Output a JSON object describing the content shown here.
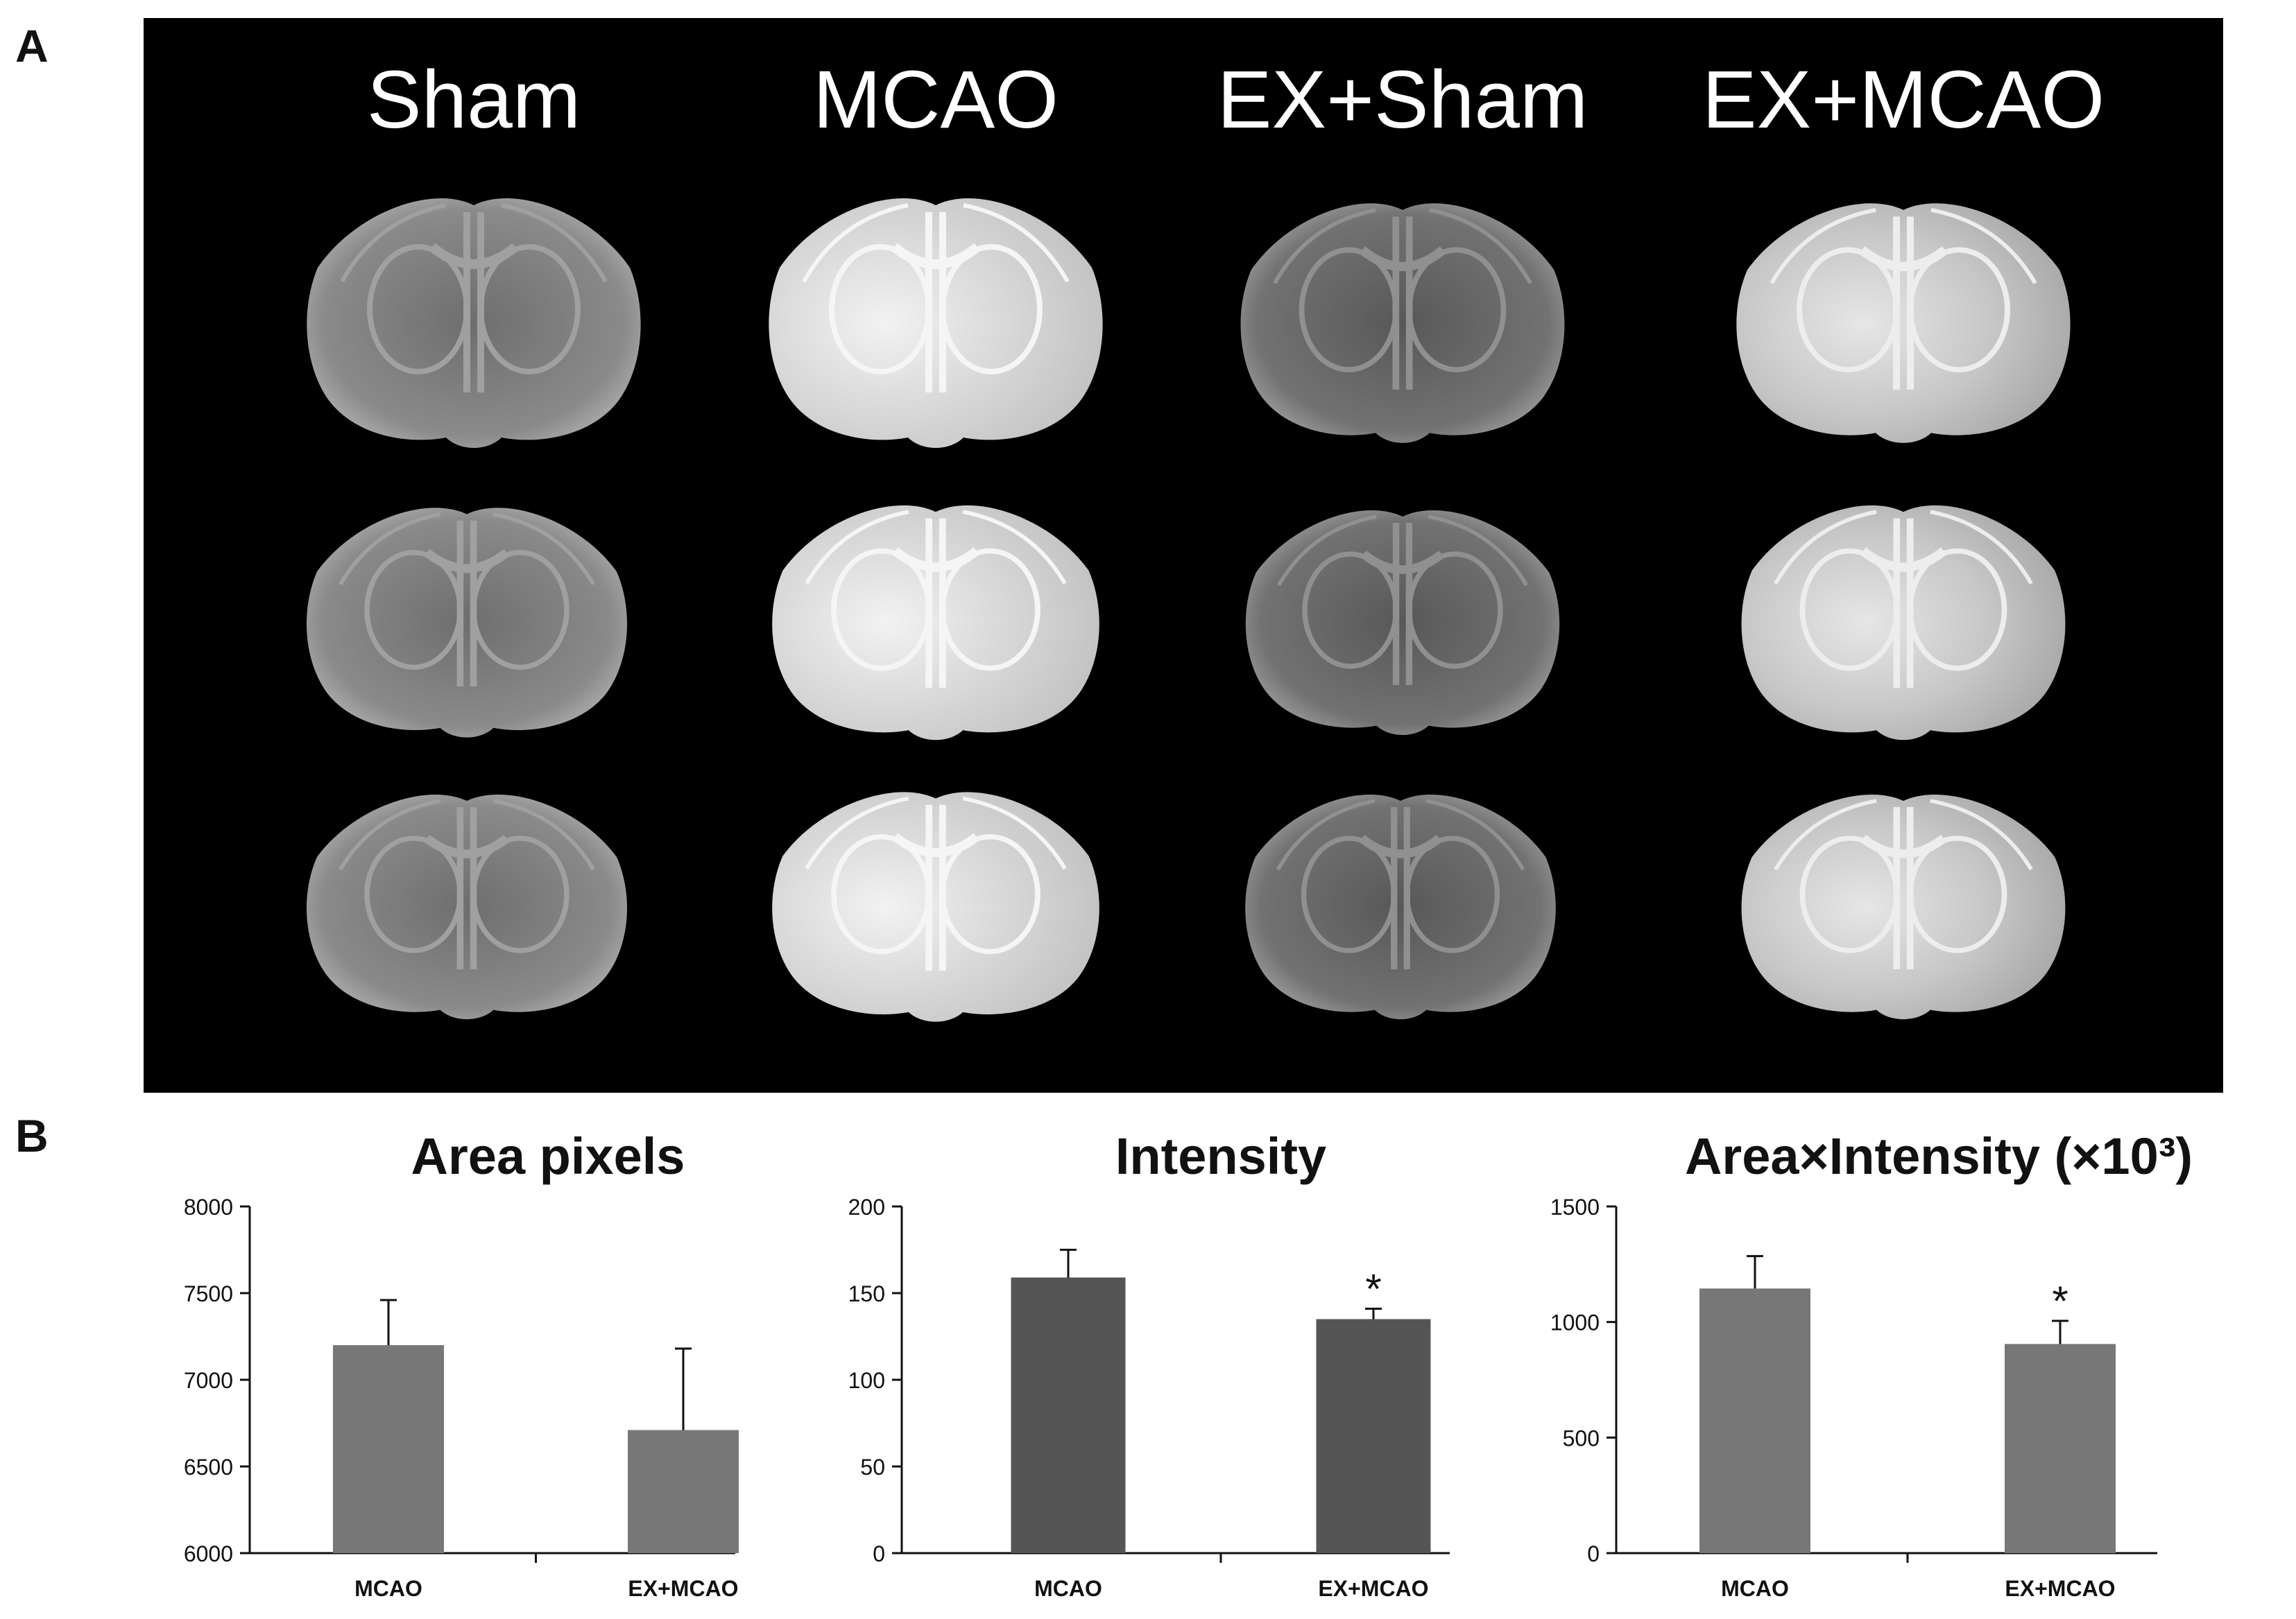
{
  "panel_a": {
    "letter": "A",
    "columns": [
      "Sham",
      "MCAO",
      "EX+Sham",
      "EX+MCAO"
    ]
  },
  "panel_b": {
    "letter": "B"
  },
  "chart_data": [
    {
      "type": "bar",
      "title": "Area pixels",
      "categories": [
        "MCAO",
        "EX+MCAO"
      ],
      "values": [
        7200,
        6710
      ],
      "errors": [
        260,
        470
      ],
      "ylim": [
        6000,
        8000
      ],
      "yticks": [
        6000,
        6500,
        7000,
        7500,
        8000
      ],
      "significance": [
        "",
        ""
      ],
      "color": "#777777"
    },
    {
      "type": "bar",
      "title": "Intensity",
      "categories": [
        "MCAO",
        "EX+MCAO"
      ],
      "values": [
        159,
        135
      ],
      "errors": [
        16,
        6
      ],
      "ylim": [
        0,
        200
      ],
      "yticks": [
        0,
        50,
        100,
        150,
        200
      ],
      "significance": [
        "",
        "*"
      ],
      "color": "#555555"
    },
    {
      "type": "bar",
      "title": "Area×Intensity (×10³)",
      "categories": [
        "MCAO",
        "EX+MCAO"
      ],
      "values": [
        1145,
        905
      ],
      "errors": [
        140,
        100
      ],
      "ylim": [
        0,
        1500
      ],
      "yticks": [
        0,
        500,
        1000,
        1500
      ],
      "significance": [
        "",
        "*"
      ],
      "color": "#777777"
    }
  ]
}
